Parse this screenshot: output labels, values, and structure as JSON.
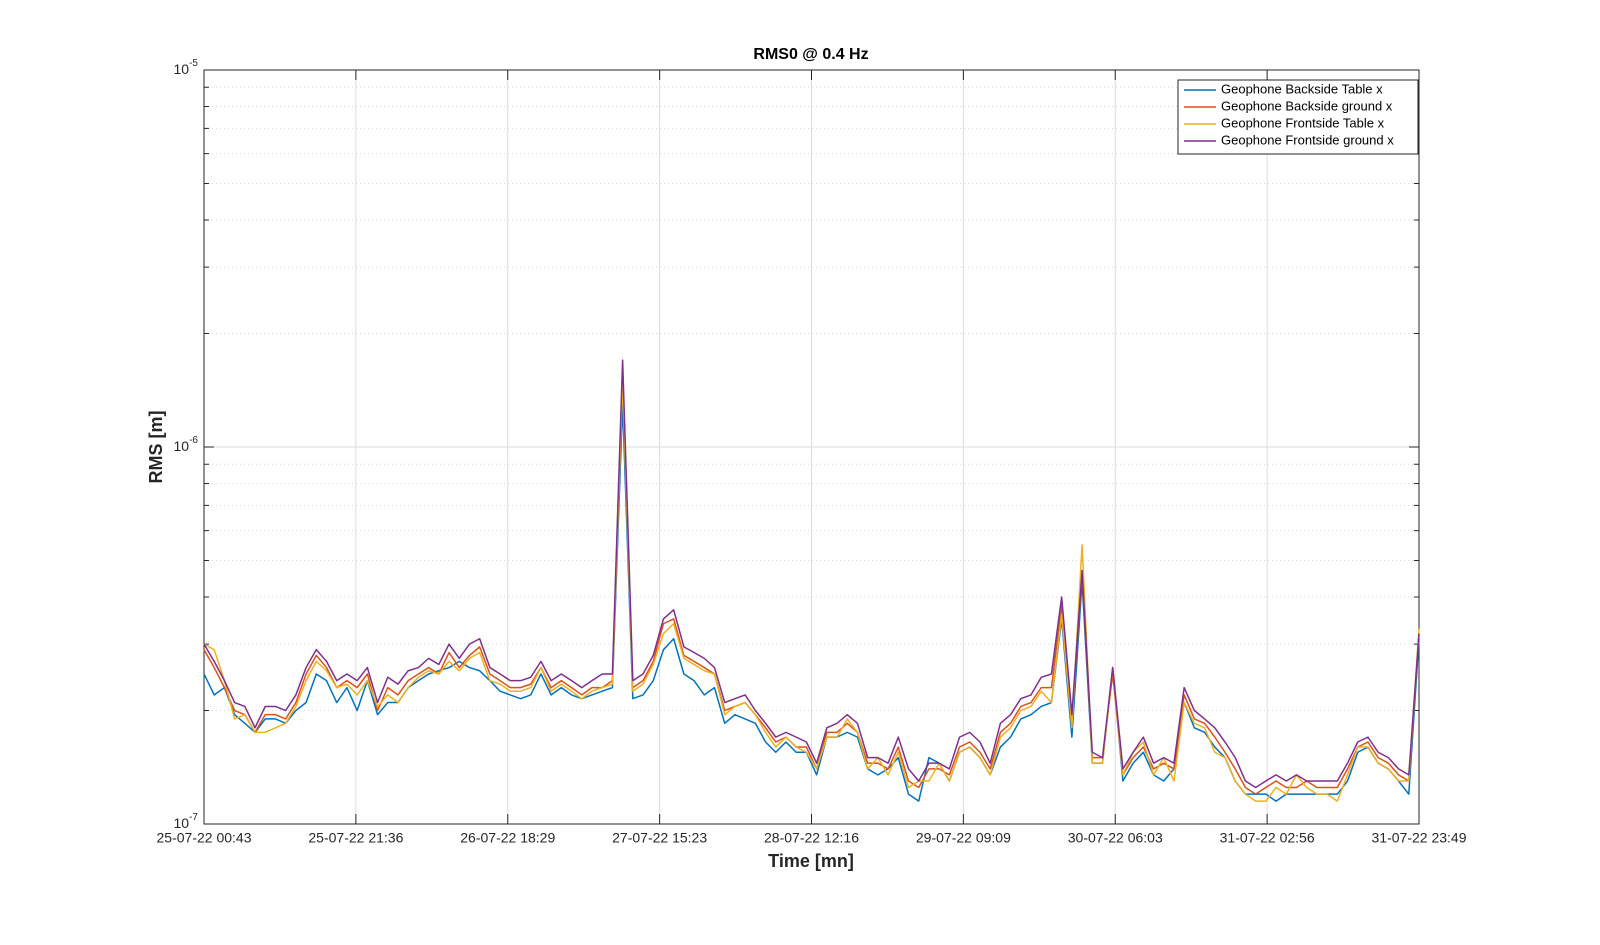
{
  "chart_data": {
    "type": "line",
    "title": "RMS0 @ 0.4 Hz",
    "xlabel": "Time [mn]",
    "ylabel": "RMS [m]",
    "xticks": [
      "25-07-22 00:43",
      "25-07-22 21:36",
      "26-07-22 18:29",
      "27-07-22 15:23",
      "28-07-22 12:16",
      "29-07-22 09:09",
      "30-07-22 06:03",
      "31-07-22 02:56",
      "31-07-22 23:49"
    ],
    "ylim": [
      1e-07,
      1e-05
    ],
    "yscale": "log",
    "yticks": [
      {
        "value": 1e-07,
        "label": "10^{-7}"
      },
      {
        "value": 1e-06,
        "label": "10^{-6}"
      },
      {
        "value": 1e-05,
        "label": "10^{-5}"
      }
    ],
    "minor_yticks": [
      2e-07,
      3e-07,
      4e-07,
      5e-07,
      6e-07,
      7e-07,
      8e-07,
      9e-07,
      2e-06,
      3e-06,
      4e-06,
      5e-06,
      6e-06,
      7e-06,
      8e-06,
      9e-06
    ],
    "grid": true,
    "legend": "northeast",
    "series": [
      {
        "name": "Geophone Backside Table x",
        "color": "#0072BD",
        "values": [
          2.5e-07,
          2.2e-07,
          2.3e-07,
          1.95e-07,
          1.85e-07,
          1.75e-07,
          1.9e-07,
          1.9e-07,
          1.85e-07,
          2e-07,
          2.1e-07,
          2.5e-07,
          2.4e-07,
          2.1e-07,
          2.3e-07,
          2e-07,
          2.4e-07,
          1.95e-07,
          2.1e-07,
          2.1e-07,
          2.3e-07,
          2.4e-07,
          2.5e-07,
          2.55e-07,
          2.6e-07,
          2.7e-07,
          2.6e-07,
          2.55e-07,
          2.4e-07,
          2.25e-07,
          2.2e-07,
          2.15e-07,
          2.2e-07,
          2.5e-07,
          2.2e-07,
          2.3e-07,
          2.2e-07,
          2.15e-07,
          2.2e-07,
          2.25e-07,
          2.3e-07,
          1.3e-06,
          2.15e-07,
          2.2e-07,
          2.4e-07,
          2.9e-07,
          3.1e-07,
          2.5e-07,
          2.4e-07,
          2.2e-07,
          2.3e-07,
          1.85e-07,
          1.95e-07,
          1.9e-07,
          1.85e-07,
          1.65e-07,
          1.55e-07,
          1.65e-07,
          1.55e-07,
          1.55e-07,
          1.35e-07,
          1.7e-07,
          1.7e-07,
          1.75e-07,
          1.7e-07,
          1.4e-07,
          1.35e-07,
          1.4e-07,
          1.5e-07,
          1.2e-07,
          1.15e-07,
          1.5e-07,
          1.45e-07,
          1.3e-07,
          1.55e-07,
          1.6e-07,
          1.5e-07,
          1.35e-07,
          1.6e-07,
          1.7e-07,
          1.9e-07,
          1.95e-07,
          2.05e-07,
          2.1e-07,
          3.5e-07,
          1.7e-07,
          4.4e-07,
          1.45e-07,
          1.45e-07,
          2.6e-07,
          1.3e-07,
          1.45e-07,
          1.55e-07,
          1.35e-07,
          1.3e-07,
          1.4e-07,
          2.1e-07,
          1.8e-07,
          1.75e-07,
          1.6e-07,
          1.5e-07,
          1.3e-07,
          1.2e-07,
          1.2e-07,
          1.2e-07,
          1.15e-07,
          1.2e-07,
          1.2e-07,
          1.2e-07,
          1.2e-07,
          1.2e-07,
          1.2e-07,
          1.3e-07,
          1.55e-07,
          1.6e-07,
          1.45e-07,
          1.4e-07,
          1.3e-07,
          1.2e-07,
          3.1e-07
        ]
      },
      {
        "name": "Geophone Backside ground x",
        "color": "#D95319",
        "values": [
          2.9e-07,
          2.6e-07,
          2.3e-07,
          2e-07,
          1.95e-07,
          1.75e-07,
          1.95e-07,
          1.95e-07,
          1.9e-07,
          2.1e-07,
          2.5e-07,
          2.8e-07,
          2.6e-07,
          2.3e-07,
          2.4e-07,
          2.3e-07,
          2.5e-07,
          2e-07,
          2.3e-07,
          2.2e-07,
          2.4e-07,
          2.5e-07,
          2.6e-07,
          2.5e-07,
          2.85e-07,
          2.6e-07,
          2.8e-07,
          2.95e-07,
          2.5e-07,
          2.4e-07,
          2.3e-07,
          2.3e-07,
          2.35e-07,
          2.6e-07,
          2.3e-07,
          2.4e-07,
          2.3e-07,
          2.2e-07,
          2.3e-07,
          2.3e-07,
          2.4e-07,
          1.6e-06,
          2.3e-07,
          2.4e-07,
          2.7e-07,
          3.4e-07,
          3.5e-07,
          2.8e-07,
          2.7e-07,
          2.6e-07,
          2.5e-07,
          2e-07,
          2.05e-07,
          2.1e-07,
          1.95e-07,
          1.8e-07,
          1.65e-07,
          1.7e-07,
          1.6e-07,
          1.6e-07,
          1.4e-07,
          1.75e-07,
          1.75e-07,
          1.85e-07,
          1.75e-07,
          1.45e-07,
          1.45e-07,
          1.4e-07,
          1.6e-07,
          1.3e-07,
          1.25e-07,
          1.4e-07,
          1.4e-07,
          1.35e-07,
          1.6e-07,
          1.65e-07,
          1.55e-07,
          1.4e-07,
          1.75e-07,
          1.85e-07,
          2.05e-07,
          2.1e-07,
          2.3e-07,
          2.3e-07,
          3.8e-07,
          1.9e-07,
          4.6e-07,
          1.5e-07,
          1.5e-07,
          2.5e-07,
          1.35e-07,
          1.5e-07,
          1.6e-07,
          1.4e-07,
          1.45e-07,
          1.4e-07,
          2.2e-07,
          1.9e-07,
          1.85e-07,
          1.7e-07,
          1.55e-07,
          1.4e-07,
          1.25e-07,
          1.2e-07,
          1.25e-07,
          1.3e-07,
          1.25e-07,
          1.25e-07,
          1.3e-07,
          1.25e-07,
          1.25e-07,
          1.25e-07,
          1.4e-07,
          1.6e-07,
          1.65e-07,
          1.5e-07,
          1.45e-07,
          1.35e-07,
          1.3e-07,
          3.2e-07
        ]
      },
      {
        "name": "Geophone Frontside Table x",
        "color": "#EDB120",
        "values": [
          3e-07,
          2.9e-07,
          2.4e-07,
          1.9e-07,
          1.95e-07,
          1.75e-07,
          1.75e-07,
          1.8e-07,
          1.85e-07,
          2.05e-07,
          2.4e-07,
          2.7e-07,
          2.55e-07,
          2.3e-07,
          2.35e-07,
          2.2e-07,
          2.4e-07,
          2.05e-07,
          2.2e-07,
          2.1e-07,
          2.3e-07,
          2.45e-07,
          2.55e-07,
          2.5e-07,
          2.7e-07,
          2.55e-07,
          2.75e-07,
          2.85e-07,
          2.4e-07,
          2.35e-07,
          2.25e-07,
          2.25e-07,
          2.3e-07,
          2.6e-07,
          2.25e-07,
          2.35e-07,
          2.25e-07,
          2.15e-07,
          2.25e-07,
          2.3e-07,
          2.35e-07,
          1.5e-06,
          2.25e-07,
          2.35e-07,
          2.65e-07,
          3.2e-07,
          3.4e-07,
          2.75e-07,
          2.65e-07,
          2.55e-07,
          2.5e-07,
          1.95e-07,
          2.05e-07,
          2.1e-07,
          1.95e-07,
          1.75e-07,
          1.6e-07,
          1.7e-07,
          1.6e-07,
          1.55e-07,
          1.4e-07,
          1.7e-07,
          1.7e-07,
          1.9e-07,
          1.75e-07,
          1.4e-07,
          1.5e-07,
          1.35e-07,
          1.55e-07,
          1.25e-07,
          1.3e-07,
          1.3e-07,
          1.45e-07,
          1.3e-07,
          1.55e-07,
          1.6e-07,
          1.5e-07,
          1.35e-07,
          1.7e-07,
          1.8e-07,
          2e-07,
          2.05e-07,
          2.25e-07,
          2.1e-07,
          3.6e-07,
          1.8e-07,
          5.5e-07,
          1.45e-07,
          1.45e-07,
          2.6e-07,
          1.35e-07,
          1.55e-07,
          1.65e-07,
          1.35e-07,
          1.5e-07,
          1.3e-07,
          2.1e-07,
          1.85e-07,
          1.8e-07,
          1.55e-07,
          1.5e-07,
          1.3e-07,
          1.2e-07,
          1.15e-07,
          1.15e-07,
          1.25e-07,
          1.2e-07,
          1.35e-07,
          1.25e-07,
          1.2e-07,
          1.2e-07,
          1.15e-07,
          1.35e-07,
          1.6e-07,
          1.6e-07,
          1.45e-07,
          1.4e-07,
          1.3e-07,
          1.3e-07,
          3.3e-07
        ]
      },
      {
        "name": "Geophone Frontside ground x",
        "color": "#7E2F8E",
        "values": [
          3e-07,
          2.7e-07,
          2.4e-07,
          2.1e-07,
          2.05e-07,
          1.8e-07,
          2.05e-07,
          2.05e-07,
          2e-07,
          2.2e-07,
          2.6e-07,
          2.9e-07,
          2.7e-07,
          2.4e-07,
          2.5e-07,
          2.4e-07,
          2.6e-07,
          2.1e-07,
          2.45e-07,
          2.35e-07,
          2.55e-07,
          2.6e-07,
          2.75e-07,
          2.65e-07,
          3e-07,
          2.75e-07,
          3e-07,
          3.1e-07,
          2.6e-07,
          2.5e-07,
          2.4e-07,
          2.4e-07,
          2.45e-07,
          2.7e-07,
          2.4e-07,
          2.5e-07,
          2.4e-07,
          2.3e-07,
          2.4e-07,
          2.5e-07,
          2.5e-07,
          1.7e-06,
          2.4e-07,
          2.5e-07,
          2.8e-07,
          3.5e-07,
          3.7e-07,
          2.95e-07,
          2.85e-07,
          2.75e-07,
          2.6e-07,
          2.1e-07,
          2.15e-07,
          2.2e-07,
          2e-07,
          1.85e-07,
          1.7e-07,
          1.75e-07,
          1.7e-07,
          1.65e-07,
          1.45e-07,
          1.8e-07,
          1.85e-07,
          1.95e-07,
          1.85e-07,
          1.5e-07,
          1.5e-07,
          1.45e-07,
          1.7e-07,
          1.4e-07,
          1.3e-07,
          1.45e-07,
          1.45e-07,
          1.4e-07,
          1.7e-07,
          1.75e-07,
          1.65e-07,
          1.45e-07,
          1.85e-07,
          1.95e-07,
          2.15e-07,
          2.2e-07,
          2.45e-07,
          2.5e-07,
          4e-07,
          1.95e-07,
          4.7e-07,
          1.55e-07,
          1.5e-07,
          2.6e-07,
          1.4e-07,
          1.55e-07,
          1.7e-07,
          1.45e-07,
          1.5e-07,
          1.45e-07,
          2.3e-07,
          2e-07,
          1.9e-07,
          1.8e-07,
          1.65e-07,
          1.5e-07,
          1.3e-07,
          1.25e-07,
          1.3e-07,
          1.35e-07,
          1.3e-07,
          1.35e-07,
          1.3e-07,
          1.3e-07,
          1.3e-07,
          1.3e-07,
          1.45e-07,
          1.65e-07,
          1.7e-07,
          1.55e-07,
          1.5e-07,
          1.4e-07,
          1.35e-07,
          3.2e-07
        ]
      }
    ]
  }
}
